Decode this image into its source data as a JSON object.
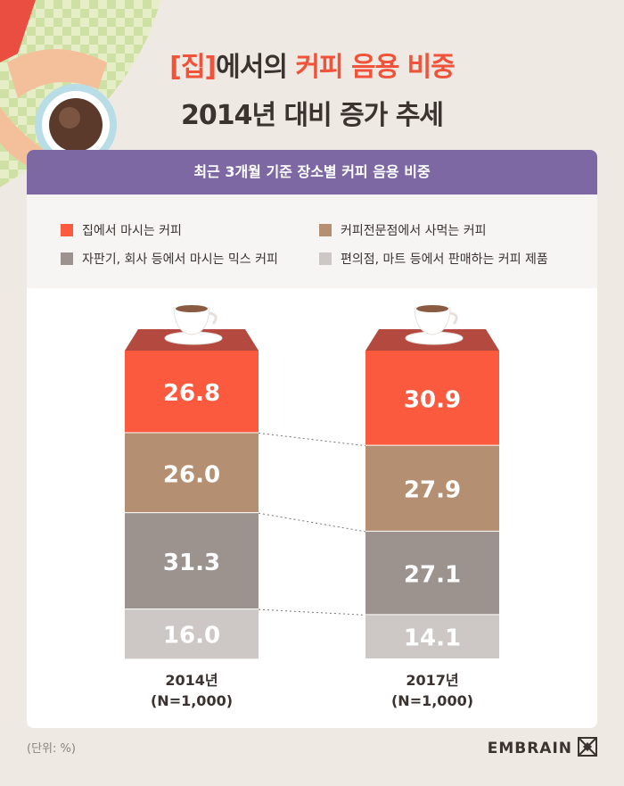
{
  "title": {
    "line1_bracket": "[집]",
    "line1_mid": "에서의 ",
    "line1_accent": "커피 음용 비중",
    "line2": "2014년 대비 증가 추세"
  },
  "panel_header": "최근 3개월 기준 장소별 커피 음용 비중",
  "unit_note": "(단위: %)",
  "brand": "EMBRAIN",
  "colors": {
    "home": "#fb5a3f",
    "specialty": "#b48f72",
    "office_mix": "#9c938f",
    "convenience": "#cdc8c5",
    "header": "#7d68a4"
  },
  "chart_data": {
    "type": "bar",
    "stacked": true,
    "categories": [
      "2014년",
      "2017년"
    ],
    "category_notes": [
      "(N=1,000)",
      "(N=1,000)"
    ],
    "series": [
      {
        "name": "집에서 마시는 커피",
        "values": [
          26.8,
          30.9
        ],
        "color": "#fb5a3f"
      },
      {
        "name": "커피전문점에서 사먹는 커피",
        "values": [
          26.0,
          27.9
        ],
        "color": "#b48f72"
      },
      {
        "name": "자판기, 회사 등에서 마시는 믹스 커피",
        "values": [
          31.3,
          27.1
        ],
        "color": "#9c938f"
      },
      {
        "name": "편의점, 마트 등에서 판매하는 커피 제품",
        "values": [
          16.0,
          14.1
        ],
        "color": "#cdc8c5"
      }
    ],
    "unit": "%",
    "ylim": [
      0,
      100
    ]
  }
}
